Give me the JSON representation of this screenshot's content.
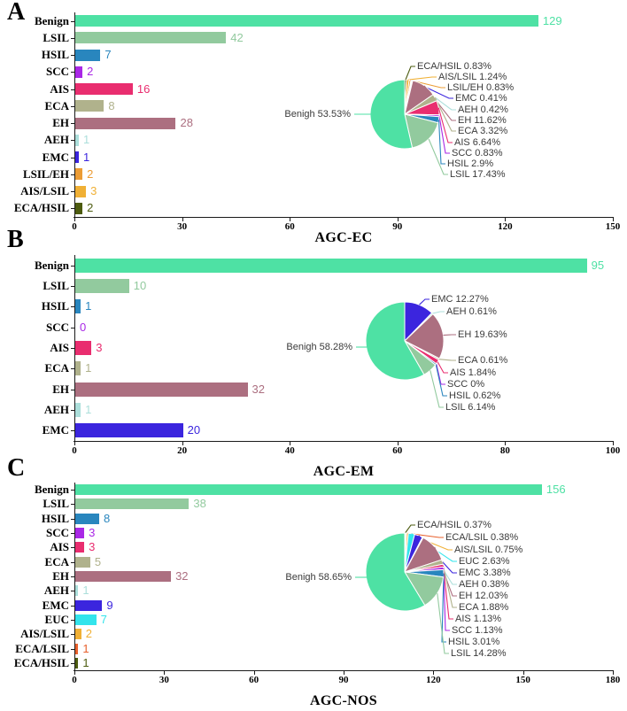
{
  "figure": {
    "background": "#ffffff",
    "text_color": "#000000",
    "pie_label_color": "#3a3a3a"
  },
  "colors": {
    "Benign": "#4EE1A4",
    "Benigh": "#4EE1A4",
    "LSIL": "#92CA9E",
    "HSIL": "#2986BE",
    "SCC": "#A928E6",
    "AIS": "#E92D6F",
    "ECA": "#B0B28C",
    "EH": "#AC6F80",
    "AEH": "#ACDFDB",
    "EMC": "#3B25DE",
    "EUC": "#33E4EC",
    "LSIL/EH": "#EC9C35",
    "AIS/LSIL": "#F0B035",
    "ECA/LSIL": "#E8602C",
    "ECA/HSIL": "#4D5C10"
  },
  "chart_data": [
    {
      "panel_label": "A",
      "axis_title": "AGC-EC",
      "type": "bar+pie",
      "bar_chart": {
        "type": "bar",
        "orientation": "horizontal",
        "categories": [
          "Benign",
          "LSIL",
          "HSIL",
          "SCC",
          "AIS",
          "ECA",
          "EH",
          "AEH",
          "EMC",
          "LSIL/EH",
          "AIS/LSIL",
          "ECA/HSIL"
        ],
        "values": [
          129,
          42,
          7,
          2,
          16,
          8,
          28,
          1,
          1,
          2,
          3,
          2
        ],
        "xlim": [
          0,
          150
        ],
        "xticks": [
          0,
          30,
          60,
          90,
          120,
          150
        ],
        "grid": false,
        "value_labels_shown": true
      },
      "pie_chart": {
        "type": "pie",
        "start_angle_deg": -90,
        "direction": "clockwise",
        "slices": [
          {
            "label": "ECA/HSIL",
            "value_pct": 0.83,
            "display": "ECA/HSIL 0.83%"
          },
          {
            "label": "AIS/LSIL",
            "value_pct": 1.24,
            "display": "AIS/LSIL 1.24%"
          },
          {
            "label": "LSIL/EH",
            "value_pct": 0.83,
            "display": "LSIL/EH 0.83%"
          },
          {
            "label": "EMC",
            "value_pct": 0.41,
            "display": "EMC 0.41%"
          },
          {
            "label": "AEH",
            "value_pct": 0.42,
            "display": "AEH 0.42%"
          },
          {
            "label": "EH",
            "value_pct": 11.62,
            "display": "EH 11.62%"
          },
          {
            "label": "ECA",
            "value_pct": 3.32,
            "display": "ECA 3.32%"
          },
          {
            "label": "AIS",
            "value_pct": 6.64,
            "display": "AIS 6.64%"
          },
          {
            "label": "SCC",
            "value_pct": 0.83,
            "display": "SCC 0.83%"
          },
          {
            "label": "HSIL",
            "value_pct": 2.9,
            "display": "HSIL 2.9%"
          },
          {
            "label": "LSIL",
            "value_pct": 17.43,
            "display": "LSIL 17.43%"
          },
          {
            "label": "Benigh",
            "value_pct": 53.53,
            "display": "Benigh 53.53%",
            "side": "left"
          }
        ]
      }
    },
    {
      "panel_label": "B",
      "axis_title": "AGC-EM",
      "type": "bar+pie",
      "bar_chart": {
        "type": "bar",
        "orientation": "horizontal",
        "categories": [
          "Benign",
          "LSIL",
          "HSIL",
          "SCC",
          "AIS",
          "ECA",
          "EH",
          "AEH",
          "EMC"
        ],
        "values": [
          95,
          10,
          1,
          0,
          3,
          1,
          32,
          1,
          20
        ],
        "xlim": [
          0,
          100
        ],
        "xticks": [
          0,
          20,
          40,
          60,
          80,
          100
        ],
        "grid": false,
        "value_labels_shown": true
      },
      "pie_chart": {
        "type": "pie",
        "start_angle_deg": -90,
        "direction": "clockwise",
        "slices": [
          {
            "label": "EMC",
            "value_pct": 12.27,
            "display": "EMC 12.27%"
          },
          {
            "label": "AEH",
            "value_pct": 0.61,
            "display": "AEH 0.61%"
          },
          {
            "label": "EH",
            "value_pct": 19.63,
            "display": "EH 19.63%"
          },
          {
            "label": "ECA",
            "value_pct": 0.61,
            "display": "ECA 0.61%"
          },
          {
            "label": "AIS",
            "value_pct": 1.84,
            "display": "AIS 1.84%"
          },
          {
            "label": "SCC",
            "value_pct": 0,
            "display": "SCC 0%"
          },
          {
            "label": "HSIL",
            "value_pct": 0.62,
            "display": "HSIL 0.62%"
          },
          {
            "label": "LSIL",
            "value_pct": 6.14,
            "display": "LSIL 6.14%"
          },
          {
            "label": "Benigh",
            "value_pct": 58.28,
            "display": "Benigh 58.28%",
            "side": "left"
          }
        ]
      }
    },
    {
      "panel_label": "C",
      "axis_title": "AGC-NOS",
      "type": "bar+pie",
      "bar_chart": {
        "type": "bar",
        "orientation": "horizontal",
        "categories": [
          "Benign",
          "LSIL",
          "HSIL",
          "SCC",
          "AIS",
          "ECA",
          "EH",
          "AEH",
          "EMC",
          "EUC",
          "AIS/LSIL",
          "ECA/LSIL",
          "ECA/HSIL"
        ],
        "values": [
          156,
          38,
          8,
          3,
          3,
          5,
          32,
          1,
          9,
          7,
          2,
          1,
          1
        ],
        "xlim": [
          0,
          180
        ],
        "xticks": [
          0,
          30,
          60,
          90,
          120,
          150,
          180
        ],
        "grid": false,
        "value_labels_shown": true
      },
      "pie_chart": {
        "type": "pie",
        "start_angle_deg": -90,
        "direction": "clockwise",
        "slices": [
          {
            "label": "ECA/HSIL",
            "value_pct": 0.37,
            "display": "ECA/HSIL 0.37%"
          },
          {
            "label": "ECA/LSIL",
            "value_pct": 0.38,
            "display": "ECA/LSIL 0.38%"
          },
          {
            "label": "AIS/LSIL",
            "value_pct": 0.75,
            "display": "AIS/LSIL 0.75%"
          },
          {
            "label": "EUC",
            "value_pct": 2.63,
            "display": "EUC 2.63%"
          },
          {
            "label": "EMC",
            "value_pct": 3.38,
            "display": "EMC 3.38%"
          },
          {
            "label": "AEH",
            "value_pct": 0.38,
            "display": "AEH 0.38%"
          },
          {
            "label": "EH",
            "value_pct": 12.03,
            "display": "EH 12.03%"
          },
          {
            "label": "ECA",
            "value_pct": 1.88,
            "display": "ECA 1.88%"
          },
          {
            "label": "AIS",
            "value_pct": 1.13,
            "display": "AIS 1.13%"
          },
          {
            "label": "SCC",
            "value_pct": 1.13,
            "display": "SCC 1.13%"
          },
          {
            "label": "HSIL",
            "value_pct": 3.01,
            "display": "HSIL 3.01%"
          },
          {
            "label": "LSIL",
            "value_pct": 14.28,
            "display": "LSIL 14.28%"
          },
          {
            "label": "Benigh",
            "value_pct": 58.65,
            "display": "Benigh 58.65%",
            "side": "left"
          }
        ]
      }
    }
  ]
}
